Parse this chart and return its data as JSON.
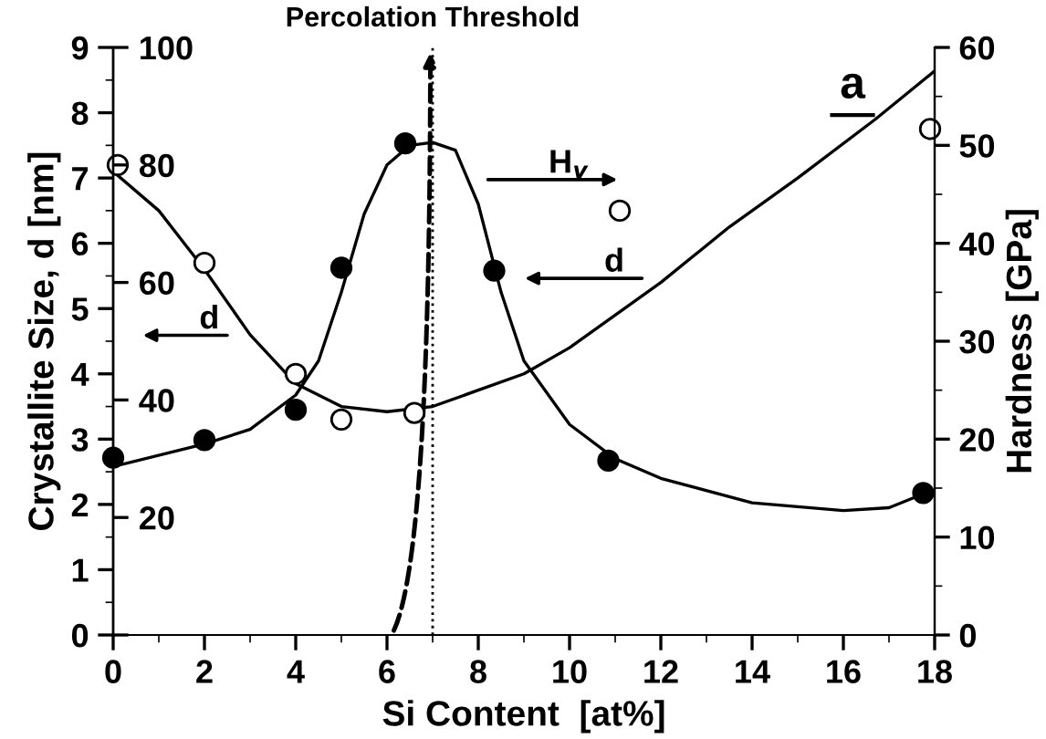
{
  "chart_data": {
    "type": "scatter",
    "xlabel": "Si Content  [at%]",
    "ylabel": "Crystallite Size, d [nm]",
    "y2label": "Hardness [GPa]",
    "xlim": [
      0,
      18
    ],
    "xticks": [
      0,
      2,
      4,
      6,
      8,
      10,
      12,
      14,
      16,
      18
    ],
    "ylim": [
      0,
      9
    ],
    "yticks": [
      0,
      1,
      2,
      3,
      4,
      5,
      6,
      7,
      8,
      9
    ],
    "y2lim": [
      0,
      60
    ],
    "y2ticks": [
      0,
      10,
      20,
      30,
      40,
      50,
      60
    ],
    "y3lim": [
      0,
      100
    ],
    "y3ticks": [
      {
        "value": 0,
        "label": null
      },
      20,
      40,
      60,
      80,
      100
    ],
    "grid": false,
    "series": [
      {
        "color": "#ffffff",
        "marker": "circle",
        "x": [
          0.1,
          2,
          4,
          5,
          6.6,
          11.1,
          17.9
        ],
        "values": [
          7.2,
          5.7,
          4.0,
          3.3,
          3.4,
          6.5,
          7.75
        ]
      },
      {
        "type": "line",
        "color": "#000000",
        "marker": "none",
        "line_style": "solid",
        "x": [
          0,
          1,
          2,
          3,
          4,
          5,
          6,
          7,
          8,
          9,
          10,
          11,
          12,
          13.5,
          15,
          16.7,
          18
        ],
        "values": [
          7.1,
          6.5,
          5.6,
          4.6,
          3.85,
          3.5,
          3.42,
          3.5,
          3.75,
          4.0,
          4.4,
          4.9,
          5.4,
          6.25,
          7.0,
          7.9,
          8.64
        ]
      },
      {
        "axis": "y2",
        "color": "#000000",
        "marker": "circle",
        "x": [
          0,
          2,
          4,
          5,
          6.4,
          8.35,
          10.85,
          17.75
        ],
        "values": [
          18.1,
          19.9,
          23.0,
          37.5,
          50.2,
          37.2,
          17.8,
          14.5
        ]
      },
      {
        "type": "line",
        "axis": "y2",
        "color": "#000000",
        "marker": "none",
        "line_style": "solid",
        "x": [
          0,
          2,
          3,
          4,
          4.5,
          5,
          5.5,
          6,
          6.5,
          7,
          7.5,
          8,
          8.5,
          9,
          10,
          11,
          12,
          14,
          16,
          17,
          17.8
        ],
        "values": [
          17.2,
          19.5,
          21,
          24.5,
          28,
          35,
          43,
          48,
          50,
          50.3,
          49.5,
          44,
          35,
          28,
          21.5,
          18,
          16,
          13.5,
          12.7,
          13,
          14.5
        ]
      }
    ],
    "ref_lines": [
      {
        "axis": "x",
        "value": 7,
        "label": "Percolation Threshold",
        "line_style": "dotted",
        "color": "#000000"
      }
    ],
    "annotations": [
      "H$_{v}$",
      "d",
      "d",
      "a"
    ]
  }
}
